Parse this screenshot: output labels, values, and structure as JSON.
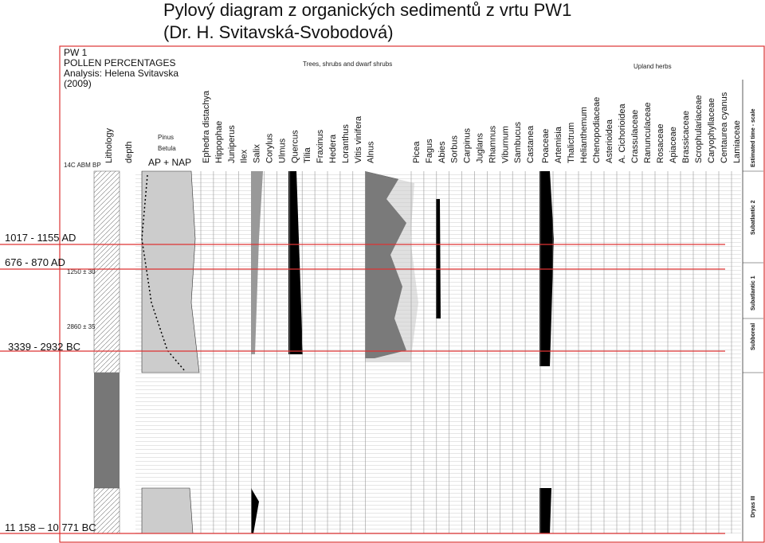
{
  "title": [
    "Pylový diagram z organických sedimentů z vrtu PW1",
    "(Dr. H. Svitavská-Svobodová)"
  ],
  "header": [
    "PW 1",
    "POLLEN PERCENTAGES",
    "Analysis: Helena Svitavska",
    "(2009)"
  ],
  "group_labels": [
    "Trees, shrubs and dwarf shrubs",
    "Upland herbs"
  ],
  "columns": [
    "14C ABM BP",
    "Lithology",
    "depth",
    "Pinus",
    "Betula",
    "AP + NAP"
  ],
  "taxa": [
    "Ephedra distachya",
    "Hippophae",
    "Juniperus",
    "Ilex",
    "Salix",
    "Corylus",
    "Ulmus",
    "Quercus",
    "Tilia",
    "Fraxinus",
    "Hedera",
    "Loranthus",
    "Vitis vinifera",
    "Alnus",
    "Picea",
    "Fagus",
    "Abies",
    "Sorbus",
    "Carpinus",
    "Juglans",
    "Rhamnus",
    "Viburnum",
    "Sambucus",
    "Castanea",
    "Poaceae",
    "Artemisia",
    "Thalictrum",
    "Helianthemum",
    "Chenopodiaceae",
    "Asterioidea",
    "A. Cichorioidea",
    "Crassulaceae",
    "Ranunculaceae",
    "Rosaceae",
    "Apiaceae",
    "Brassicaceae",
    "Scrophulariaceae",
    "Caryophyllaceae",
    "Centaurea cyanus",
    "Lamiaceae"
  ],
  "timescale_label": "Estimated time - scale",
  "zones": [
    "Subatlantic 2",
    "Subatlantic 1",
    "Subboreal",
    "Dryas III"
  ],
  "radiocarbon_dates": [
    "1250 ± 30",
    "2860 ± 35"
  ],
  "calibrated_dates": [
    "1017 - 1155 AD",
    "676 - 870 AD",
    "3339 - 2932 BC",
    "11 158 – 10 771 BC"
  ]
}
